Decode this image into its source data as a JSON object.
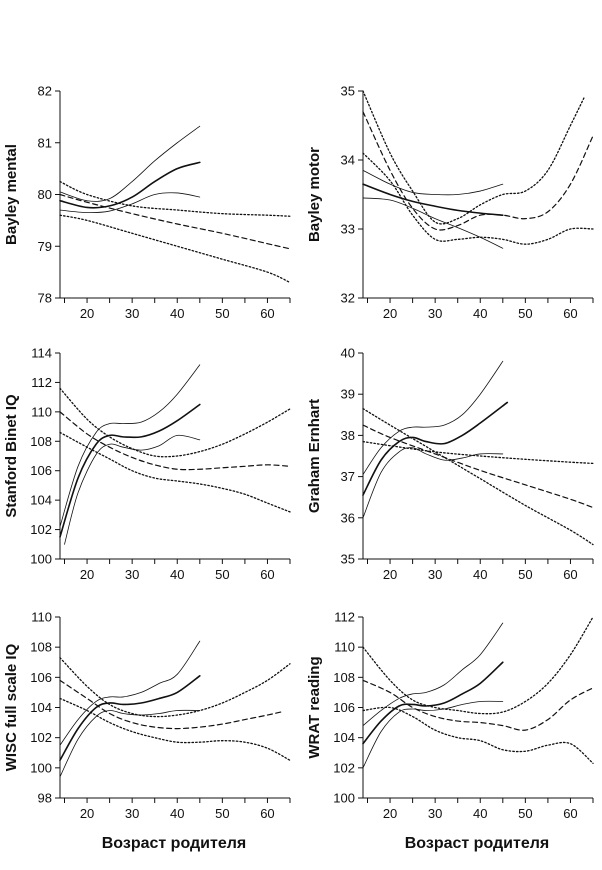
{
  "xlabels": [
    "Возраст родителя",
    "Возраст родителя"
  ],
  "chart_data": [
    {
      "type": "line",
      "ylabel": "Bayley mental",
      "xlim": [
        14,
        65
      ],
      "ylim": [
        78,
        82
      ],
      "xticks": [
        20,
        30,
        40,
        50,
        60
      ],
      "yticks": [
        78,
        79,
        80,
        81,
        82
      ],
      "series": [
        {
          "style": "solid-thick",
          "x": [
            14,
            20,
            25,
            30,
            35,
            40,
            45
          ],
          "y": [
            79.88,
            79.75,
            79.78,
            79.95,
            80.25,
            80.5,
            80.62
          ]
        },
        {
          "style": "solid-thin",
          "x": [
            14,
            20,
            25,
            30,
            35,
            40,
            45
          ],
          "y": [
            80.05,
            79.88,
            79.92,
            80.25,
            80.65,
            81.0,
            81.32
          ]
        },
        {
          "style": "solid-thin",
          "x": [
            14,
            20,
            25,
            30,
            35,
            40,
            45
          ],
          "y": [
            79.7,
            79.65,
            79.68,
            79.82,
            80.0,
            80.03,
            79.95
          ]
        },
        {
          "style": "dotted",
          "x": [
            14,
            20,
            30,
            40,
            50,
            60,
            65
          ],
          "y": [
            80.25,
            80.0,
            79.78,
            79.7,
            79.63,
            79.6,
            79.58
          ]
        },
        {
          "style": "dashed",
          "x": [
            14,
            20,
            30,
            40,
            50,
            60,
            65
          ],
          "y": [
            80.0,
            79.85,
            79.63,
            79.43,
            79.25,
            79.05,
            78.95
          ]
        },
        {
          "style": "dotted",
          "x": [
            14,
            20,
            30,
            40,
            50,
            60,
            65
          ],
          "y": [
            79.6,
            79.5,
            79.25,
            79.0,
            78.75,
            78.5,
            78.3
          ]
        }
      ]
    },
    {
      "type": "line",
      "ylabel": "Bayley motor",
      "xlim": [
        14,
        65
      ],
      "ylim": [
        32,
        35
      ],
      "xticks": [
        20,
        30,
        40,
        50,
        60
      ],
      "yticks": [
        32,
        33,
        34,
        35
      ],
      "series": [
        {
          "style": "solid-thick",
          "x": [
            14,
            20,
            25,
            30,
            35,
            40,
            45
          ],
          "y": [
            33.65,
            33.5,
            33.4,
            33.33,
            33.27,
            33.23,
            33.2
          ]
        },
        {
          "style": "solid-thin",
          "x": [
            14,
            20,
            25,
            30,
            35,
            40,
            45
          ],
          "y": [
            33.85,
            33.65,
            33.53,
            33.5,
            33.5,
            33.55,
            33.65
          ]
        },
        {
          "style": "solid-thin",
          "x": [
            14,
            20,
            25,
            30,
            35,
            40,
            45
          ],
          "y": [
            33.45,
            33.42,
            33.3,
            33.15,
            33.02,
            32.88,
            32.72
          ]
        },
        {
          "style": "dotted",
          "x": [
            14,
            20,
            25,
            30,
            35,
            40,
            45,
            50,
            55,
            60,
            63
          ],
          "y": [
            35.0,
            34.1,
            33.55,
            33.1,
            33.15,
            33.35,
            33.5,
            33.55,
            33.85,
            34.5,
            34.9
          ]
        },
        {
          "style": "dashed",
          "x": [
            14,
            20,
            25,
            30,
            35,
            40,
            45,
            50,
            55,
            60,
            65
          ],
          "y": [
            34.7,
            33.85,
            33.3,
            33.0,
            33.05,
            33.2,
            33.2,
            33.15,
            33.25,
            33.65,
            34.35
          ]
        },
        {
          "style": "dotted",
          "x": [
            14,
            20,
            25,
            30,
            35,
            40,
            45,
            50,
            55,
            60,
            65
          ],
          "y": [
            34.1,
            33.7,
            33.2,
            32.85,
            32.85,
            32.88,
            32.85,
            32.78,
            32.85,
            33.0,
            33.0
          ]
        }
      ]
    },
    {
      "type": "line",
      "ylabel": "Stanford Binet IQ",
      "xlim": [
        14,
        65
      ],
      "ylim": [
        100,
        114
      ],
      "xticks": [
        20,
        30,
        40,
        50,
        60
      ],
      "yticks": [
        100,
        102,
        104,
        106,
        108,
        110,
        112,
        114
      ],
      "series": [
        {
          "style": "solid-thick",
          "x": [
            14,
            18,
            22,
            25,
            28,
            32,
            36,
            40,
            45
          ],
          "y": [
            101.5,
            105.5,
            107.8,
            108.4,
            108.3,
            108.3,
            108.7,
            109.4,
            110.5
          ]
        },
        {
          "style": "solid-thin",
          "x": [
            14,
            18,
            22,
            25,
            28,
            32,
            36,
            40,
            45
          ],
          "y": [
            102.2,
            106.3,
            108.6,
            109.2,
            109.2,
            109.3,
            110.0,
            111.2,
            113.2
          ]
        },
        {
          "style": "solid-thin",
          "x": [
            15,
            18,
            22,
            25,
            28,
            32,
            36,
            40,
            45
          ],
          "y": [
            101.0,
            104.5,
            107.1,
            107.8,
            107.6,
            107.4,
            107.7,
            108.4,
            108.1
          ]
        },
        {
          "style": "dotted",
          "x": [
            14,
            20,
            25,
            30,
            35,
            40,
            45,
            50,
            55,
            60,
            65
          ],
          "y": [
            111.6,
            109.5,
            108.3,
            107.5,
            107.0,
            107.0,
            107.3,
            107.8,
            108.5,
            109.3,
            110.2
          ]
        },
        {
          "style": "dashed",
          "x": [
            14,
            20,
            25,
            30,
            35,
            40,
            45,
            50,
            55,
            60,
            65
          ],
          "y": [
            110.0,
            108.5,
            107.6,
            106.9,
            106.4,
            106.1,
            106.1,
            106.2,
            106.3,
            106.4,
            106.3
          ]
        },
        {
          "style": "dotted",
          "x": [
            14,
            20,
            25,
            30,
            35,
            40,
            45,
            50,
            55,
            60,
            65
          ],
          "y": [
            108.6,
            107.6,
            106.8,
            106.0,
            105.5,
            105.3,
            105.1,
            104.8,
            104.4,
            103.8,
            103.2
          ]
        }
      ]
    },
    {
      "type": "line",
      "ylabel": "Graham Ernhart",
      "xlim": [
        14,
        65
      ],
      "ylim": [
        35,
        40
      ],
      "xticks": [
        20,
        30,
        40,
        50,
        60
      ],
      "yticks": [
        35,
        36,
        37,
        38,
        39,
        40
      ],
      "series": [
        {
          "style": "solid-thick",
          "x": [
            14,
            18,
            22,
            25,
            28,
            32,
            36,
            40,
            46
          ],
          "y": [
            36.55,
            37.4,
            37.85,
            37.95,
            37.85,
            37.8,
            38.0,
            38.3,
            38.8
          ]
        },
        {
          "style": "solid-thin",
          "x": [
            14,
            18,
            22,
            25,
            28,
            32,
            36,
            40,
            45
          ],
          "y": [
            37.05,
            37.7,
            38.1,
            38.2,
            38.2,
            38.25,
            38.5,
            39.0,
            39.8
          ]
        },
        {
          "style": "solid-thin",
          "x": [
            14,
            18,
            22,
            25,
            28,
            32,
            36,
            40,
            45
          ],
          "y": [
            36.0,
            37.1,
            37.6,
            37.7,
            37.55,
            37.4,
            37.45,
            37.55,
            37.55
          ]
        },
        {
          "style": "dotted",
          "x": [
            14,
            20,
            30,
            40,
            50,
            60,
            65
          ],
          "y": [
            37.85,
            37.75,
            37.6,
            37.5,
            37.42,
            37.35,
            37.32
          ]
        },
        {
          "style": "dashed",
          "x": [
            14,
            20,
            30,
            40,
            50,
            60,
            65
          ],
          "y": [
            38.25,
            37.95,
            37.55,
            37.15,
            36.8,
            36.45,
            36.25
          ]
        },
        {
          "style": "dotted",
          "x": [
            14,
            20,
            30,
            40,
            50,
            60,
            65
          ],
          "y": [
            38.65,
            38.25,
            37.6,
            36.95,
            36.3,
            35.7,
            35.35
          ]
        }
      ]
    },
    {
      "type": "line",
      "ylabel": "WISC full scale IQ",
      "xlim": [
        14,
        65
      ],
      "ylim": [
        98,
        110
      ],
      "xticks": [
        20,
        30,
        40,
        50,
        60
      ],
      "yticks": [
        98,
        100,
        102,
        104,
        106,
        108,
        110
      ],
      "series": [
        {
          "style": "solid-thick",
          "x": [
            14,
            18,
            22,
            25,
            28,
            32,
            36,
            40,
            45
          ],
          "y": [
            100.5,
            102.6,
            104.0,
            104.3,
            104.2,
            104.3,
            104.6,
            105.0,
            106.1
          ]
        },
        {
          "style": "solid-thin",
          "x": [
            14,
            18,
            22,
            25,
            28,
            32,
            36,
            40,
            45
          ],
          "y": [
            101.5,
            103.2,
            104.4,
            104.7,
            104.7,
            105.0,
            105.6,
            106.2,
            108.4
          ]
        },
        {
          "style": "solid-thin",
          "x": [
            14,
            18,
            22,
            25,
            28,
            32,
            36,
            40,
            45
          ],
          "y": [
            99.4,
            101.9,
            103.4,
            103.8,
            103.6,
            103.5,
            103.6,
            103.8,
            103.8
          ]
        },
        {
          "style": "dotted",
          "x": [
            14,
            20,
            25,
            30,
            35,
            40,
            45,
            50,
            55,
            60,
            65
          ],
          "y": [
            107.3,
            105.4,
            104.2,
            103.6,
            103.4,
            103.5,
            103.8,
            104.3,
            105.0,
            105.8,
            106.9
          ]
        },
        {
          "style": "dashed",
          "x": [
            14,
            20,
            25,
            30,
            35,
            40,
            45,
            50,
            55,
            60,
            63
          ],
          "y": [
            105.8,
            104.6,
            103.6,
            103.0,
            102.7,
            102.6,
            102.7,
            102.9,
            103.2,
            103.5,
            103.7
          ]
        },
        {
          "style": "dotted",
          "x": [
            14,
            20,
            25,
            30,
            35,
            40,
            45,
            50,
            55,
            60,
            65
          ],
          "y": [
            104.6,
            103.8,
            103.0,
            102.4,
            102.0,
            101.7,
            101.7,
            101.8,
            101.7,
            101.3,
            100.5
          ]
        }
      ]
    },
    {
      "type": "line",
      "ylabel": "WRAT reading",
      "xlim": [
        14,
        65
      ],
      "ylim": [
        100,
        112
      ],
      "xticks": [
        20,
        30,
        40,
        50,
        60
      ],
      "yticks": [
        100,
        102,
        104,
        106,
        108,
        110,
        112
      ],
      "series": [
        {
          "style": "solid-thick",
          "x": [
            14,
            18,
            22,
            25,
            28,
            32,
            36,
            40,
            45
          ],
          "y": [
            103.6,
            105.1,
            106.1,
            106.2,
            106.1,
            106.3,
            106.9,
            107.6,
            109.0
          ]
        },
        {
          "style": "solid-thin",
          "x": [
            14,
            18,
            22,
            25,
            28,
            32,
            36,
            40,
            45
          ],
          "y": [
            104.8,
            105.8,
            106.6,
            106.9,
            107.0,
            107.5,
            108.5,
            109.5,
            111.6
          ]
        },
        {
          "style": "solid-thin",
          "x": [
            14,
            18,
            22,
            25,
            28,
            32,
            36,
            40,
            45
          ],
          "y": [
            102.0,
            104.4,
            105.7,
            105.9,
            105.8,
            105.9,
            106.2,
            106.4,
            106.4
          ]
        },
        {
          "style": "dotted",
          "x": [
            14,
            20,
            25,
            30,
            35,
            40,
            45,
            50,
            55,
            60,
            65
          ],
          "y": [
            110.0,
            107.8,
            106.5,
            106.0,
            105.8,
            105.6,
            105.7,
            106.4,
            107.6,
            109.5,
            112.0
          ]
        },
        {
          "style": "dashed",
          "x": [
            14,
            20,
            25,
            30,
            35,
            40,
            45,
            50,
            55,
            60,
            65
          ],
          "y": [
            107.8,
            107.0,
            106.0,
            105.4,
            105.1,
            105.0,
            104.8,
            104.5,
            105.2,
            106.5,
            107.3
          ]
        },
        {
          "style": "dotted",
          "x": [
            14,
            20,
            25,
            30,
            35,
            40,
            45,
            50,
            55,
            60,
            65
          ],
          "y": [
            105.8,
            106.0,
            105.4,
            104.5,
            104.0,
            103.8,
            103.2,
            103.1,
            103.5,
            103.6,
            102.3
          ]
        }
      ]
    }
  ]
}
